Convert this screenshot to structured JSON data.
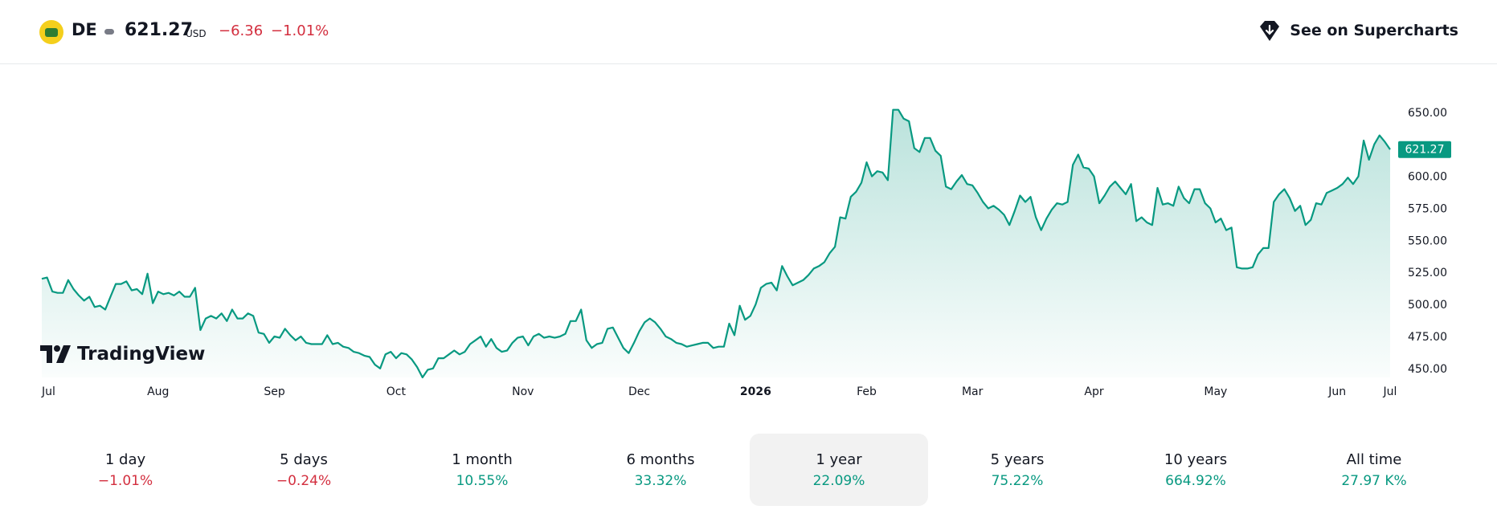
{
  "header": {
    "ticker": "DE",
    "price": "621.27",
    "currency": "USD",
    "change": "−6.36",
    "change_pct": "−1.01%",
    "supercharts_label": "See on Supercharts",
    "logo_icon": "deere-logo-icon",
    "supercharts_icon": "supercharts-icon"
  },
  "branding": {
    "watermark": "TradingView"
  },
  "colors": {
    "line": "#089981",
    "negative": "#d32f3f",
    "positive": "#089981",
    "price_tag": "#089981"
  },
  "chart_data": {
    "type": "area",
    "x_labels": [
      "Jul",
      "Aug",
      "Sep",
      "Oct",
      "Nov",
      "Dec",
      "2026",
      "Feb",
      "Mar",
      "Apr",
      "May",
      "Jun",
      "Jul"
    ],
    "y_ticks": [
      "650.00",
      "600.00",
      "575.00",
      "550.00",
      "525.00",
      "500.00",
      "475.00",
      "450.00"
    ],
    "ylim": [
      443,
      675
    ],
    "last_price_label": "621.27",
    "values": [
      520,
      521,
      510,
      509,
      509,
      519,
      512,
      507,
      503,
      506,
      498,
      499,
      496,
      506,
      516,
      516,
      518,
      511,
      512,
      508,
      524,
      501,
      510,
      508,
      509,
      507,
      510,
      506,
      506,
      513,
      480,
      489,
      491,
      489,
      493,
      487,
      496,
      489,
      489,
      493,
      491,
      478,
      477,
      470,
      475,
      474,
      481,
      476,
      472,
      475,
      470,
      469,
      469,
      469,
      476,
      469,
      470,
      467,
      466,
      463,
      462,
      460,
      459,
      453,
      450,
      461,
      463,
      458,
      462,
      461,
      457,
      451,
      443,
      449,
      450,
      458,
      458,
      461,
      464,
      461,
      463,
      469,
      472,
      475,
      467,
      473,
      466,
      463,
      464,
      470,
      474,
      475,
      468,
      475,
      477,
      474,
      475,
      474,
      475,
      477,
      487,
      487,
      496,
      472,
      466,
      469,
      470,
      481,
      482,
      474,
      466,
      462,
      470,
      479,
      486,
      489,
      486,
      481,
      475,
      473,
      470,
      469,
      467,
      468,
      469,
      470,
      470,
      466,
      467,
      467,
      485,
      476,
      499,
      488,
      491,
      500,
      513,
      516,
      517,
      511,
      530,
      522,
      515,
      517,
      519,
      523,
      528,
      530,
      533,
      540,
      545,
      568,
      567,
      584,
      588,
      595,
      611,
      600,
      604,
      603,
      597,
      652,
      652,
      645,
      643,
      622,
      619,
      630,
      630,
      620,
      616,
      592,
      590,
      596,
      601,
      594,
      593,
      587,
      580,
      575,
      577,
      574,
      570,
      562,
      573,
      585,
      580,
      584,
      568,
      558,
      567,
      574,
      579,
      578,
      580,
      609,
      617,
      607,
      606,
      600,
      579,
      585,
      592,
      596,
      591,
      586,
      594,
      565,
      568,
      564,
      562,
      591,
      578,
      579,
      577,
      592,
      583,
      579,
      590,
      590,
      579,
      575,
      564,
      567,
      558,
      560,
      529,
      528,
      528,
      529,
      539,
      544,
      544,
      580,
      586,
      590,
      583,
      573,
      577,
      562,
      566,
      579,
      578,
      587,
      589,
      591,
      594,
      599,
      594,
      600,
      628,
      613,
      625,
      632,
      627,
      621
    ]
  },
  "periods": [
    {
      "label": "1 day",
      "value": "−1.01%",
      "sign": "neg"
    },
    {
      "label": "5 days",
      "value": "−0.24%",
      "sign": "neg"
    },
    {
      "label": "1 month",
      "value": "10.55%",
      "sign": "pos"
    },
    {
      "label": "6 months",
      "value": "33.32%",
      "sign": "pos"
    },
    {
      "label": "1 year",
      "value": "22.09%",
      "sign": "pos",
      "active": true
    },
    {
      "label": "5 years",
      "value": "75.22%",
      "sign": "pos"
    },
    {
      "label": "10 years",
      "value": "664.92%",
      "sign": "pos"
    },
    {
      "label": "All time",
      "value": "27.97 K%",
      "sign": "pos"
    }
  ]
}
